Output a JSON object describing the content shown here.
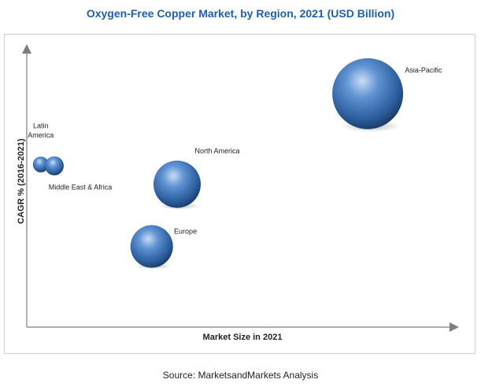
{
  "chart_data": {
    "type": "bubble",
    "title": "Oxygen-Free Copper Market, by Region, 2021 (USD Billion)",
    "xlabel": "Market Size in 2021",
    "ylabel": "CAGR % (2016-2021)",
    "grid": false,
    "legend": "none",
    "xlim": [
      0,
      100
    ],
    "ylim": [
      0,
      100
    ],
    "series": [
      {
        "name": "Asia-Pacific",
        "x": 80.5,
        "y": 82.5,
        "size": 45
      },
      {
        "name": "North America",
        "x": 35.5,
        "y": 50.5,
        "size": 30
      },
      {
        "name": "Europe",
        "x": 29.5,
        "y": 28.5,
        "size": 27
      },
      {
        "name": "Latin America",
        "x": 3.3,
        "y": 57.5,
        "size": 10
      },
      {
        "name": "Middle East & Africa",
        "x": 6.5,
        "y": 57.0,
        "size": 12
      }
    ],
    "colors": {
      "bubble": "#3a6fb5",
      "title": "#1f5fae"
    }
  },
  "source": "Source: MarketsandMarkets Analysis"
}
